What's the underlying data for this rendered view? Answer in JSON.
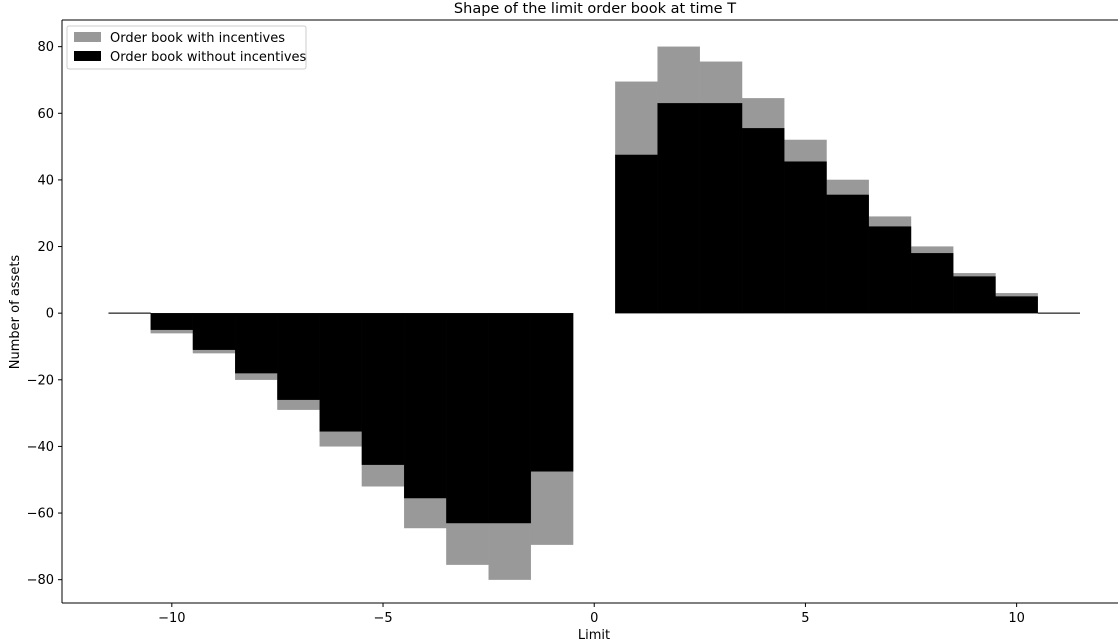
{
  "chart_data": {
    "type": "bar",
    "title": "Shape of the limit order book at time T",
    "xlabel": "Limit",
    "ylabel": "Number of assets",
    "xlim": [
      -12.6,
      12.4
    ],
    "ylim": [
      -87,
      88
    ],
    "xticks": [
      -10,
      -5,
      0,
      5,
      10
    ],
    "xtick_labels": [
      "−10",
      "−5",
      "0",
      "5",
      "10"
    ],
    "yticks": [
      -80,
      -60,
      -40,
      -20,
      0,
      20,
      40,
      60,
      80
    ],
    "ytick_labels": [
      "−80",
      "−60",
      "−40",
      "−20",
      "0",
      "20",
      "40",
      "60",
      "80"
    ],
    "bin_width": 1,
    "x": [
      -11,
      -10,
      -9,
      -8,
      -7,
      -6,
      -5,
      -4,
      -3,
      -2,
      -1,
      1,
      2,
      3,
      4,
      5,
      6,
      7,
      8,
      9,
      10,
      11
    ],
    "series": [
      {
        "name": "Order book with incentives",
        "color": "#999999",
        "values": [
          0,
          -6,
          -12,
          -20,
          -29,
          -40,
          -52,
          -64.5,
          -75.5,
          -80,
          -69.5,
          69.5,
          80,
          75.5,
          64.5,
          52,
          40,
          29,
          20,
          12,
          6,
          0
        ]
      },
      {
        "name": "Order book without incentives",
        "color": "#000000",
        "values": [
          0,
          -5,
          -11,
          -18,
          -26,
          -35.5,
          -45.5,
          -55.5,
          -63,
          -63,
          -47.5,
          47.5,
          63,
          63,
          55.5,
          45.5,
          35.5,
          26,
          18,
          11,
          5,
          0
        ]
      }
    ],
    "legend_position": "top-left",
    "grid": false
  }
}
